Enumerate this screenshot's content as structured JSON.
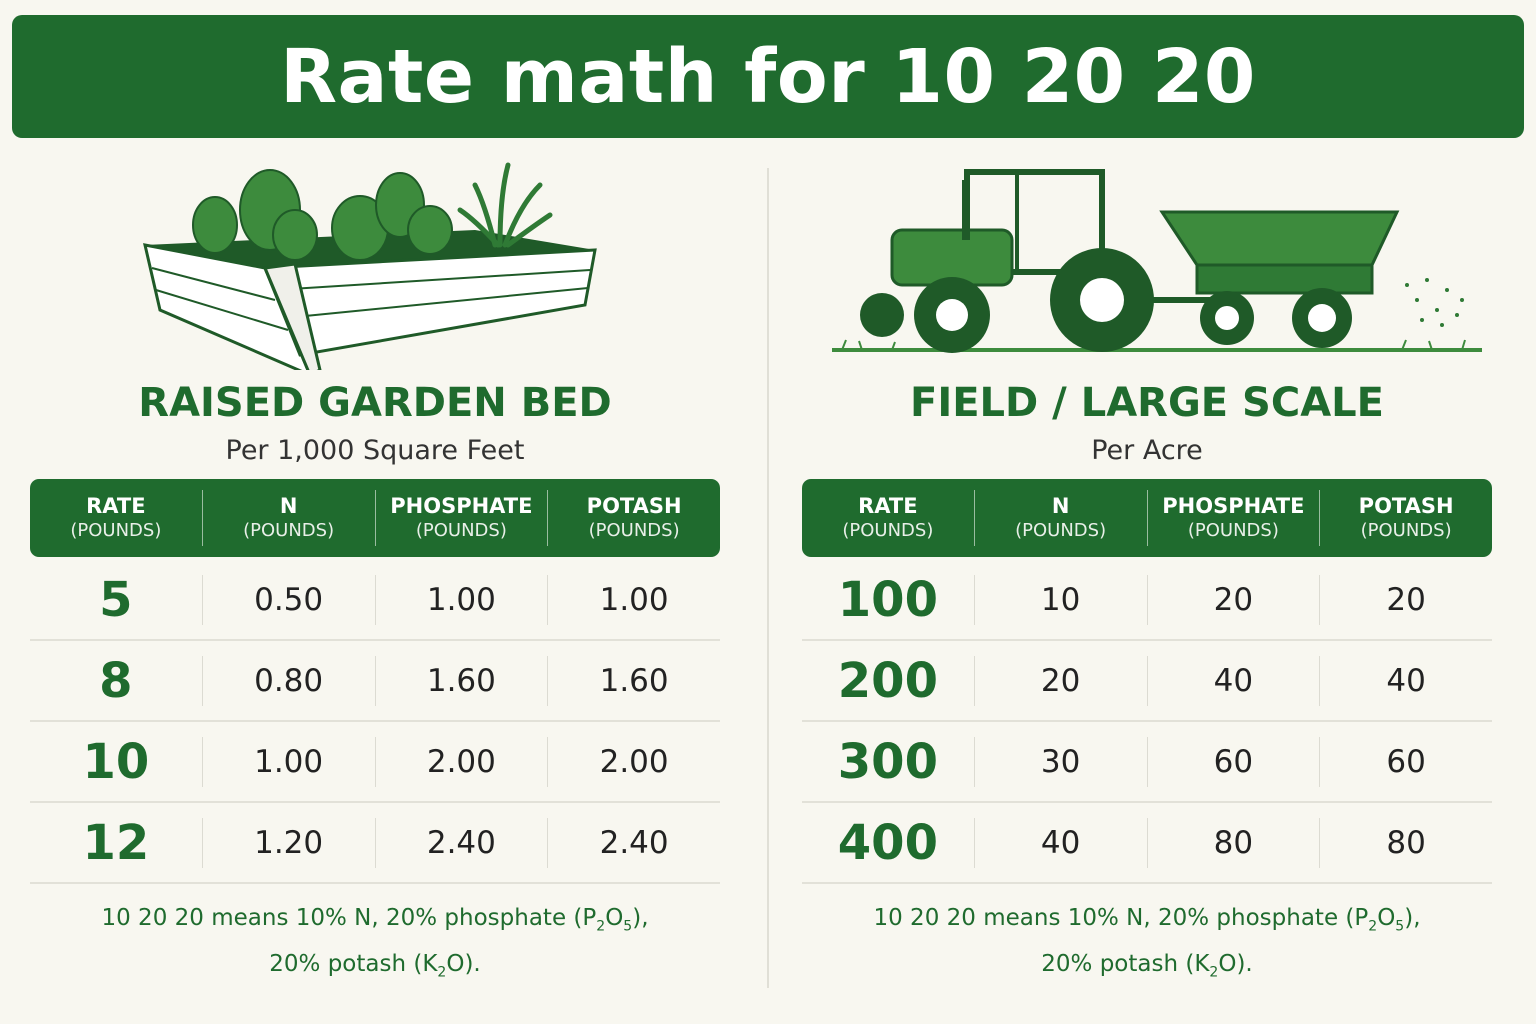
{
  "title": "Rate math for 10 20 20",
  "colors": {
    "brand": "#1f6b2e",
    "background": "#f8f7f0"
  },
  "garden": {
    "icon": "raised-garden-bed-illustration",
    "heading": "RAISED GARDEN BED",
    "subheading": "Per 1,000 Square Feet",
    "columns": [
      {
        "label": "RATE",
        "unit": "(POUNDS)"
      },
      {
        "label": "N",
        "unit": "(POUNDS)"
      },
      {
        "label": "PHOSPHATE",
        "unit": "(POUNDS)"
      },
      {
        "label": "POTASH",
        "unit": "(POUNDS)"
      }
    ],
    "rows": [
      [
        "5",
        "0.50",
        "1.00",
        "1.00"
      ],
      [
        "8",
        "0.80",
        "1.60",
        "1.60"
      ],
      [
        "10",
        "1.00",
        "2.00",
        "2.00"
      ],
      [
        "12",
        "1.20",
        "2.40",
        "2.40"
      ]
    ],
    "note": {
      "line1_a": "10 20 20 means 10% N, 20% phosphate (P",
      "line1_sub1": "2",
      "line1_b": "O",
      "line1_sub2": "5",
      "line1_c": "),",
      "line2_a": "20% potash (K",
      "line2_sub": "2",
      "line2_b": "O)."
    }
  },
  "field": {
    "icon": "tractor-spreader-illustration",
    "heading": "FIELD / LARGE SCALE",
    "subheading": "Per Acre",
    "columns": [
      {
        "label": "RATE",
        "unit": "(POUNDS)"
      },
      {
        "label": "N",
        "unit": "(POUNDS)"
      },
      {
        "label": "PHOSPHATE",
        "unit": "(POUNDS)"
      },
      {
        "label": "POTASH",
        "unit": "(POUNDS)"
      }
    ],
    "rows": [
      [
        "100",
        "10",
        "20",
        "20"
      ],
      [
        "200",
        "20",
        "40",
        "40"
      ],
      [
        "300",
        "30",
        "60",
        "60"
      ],
      [
        "400",
        "40",
        "80",
        "80"
      ]
    ],
    "note": {
      "line1_a": "10 20 20 means 10% N, 20% phosphate (P",
      "line1_sub1": "2",
      "line1_b": "O",
      "line1_sub2": "5",
      "line1_c": "),",
      "line2_a": "20% potash (K",
      "line2_sub": "2",
      "line2_b": "O)."
    }
  }
}
